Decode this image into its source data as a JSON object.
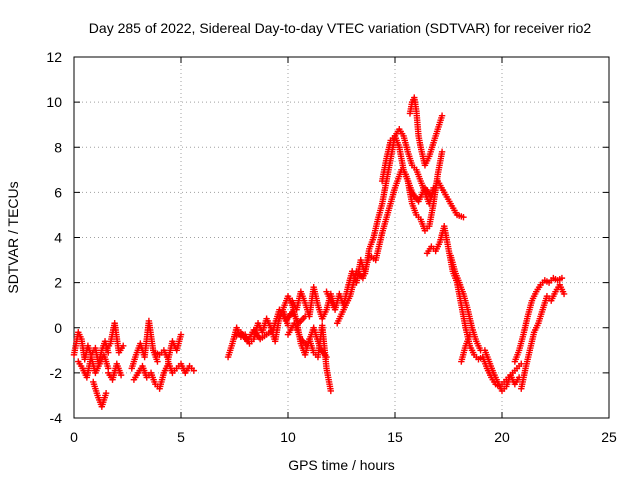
{
  "chart_data": {
    "type": "scatter",
    "title": "Day 285 of 2022, Sidereal Day-to-day VTEC variation (SDTVAR) for receiver rio2",
    "xlabel": "GPS time / hours",
    "ylabel": "SDTVAR / TECUs",
    "xlim": [
      0,
      25
    ],
    "ylim": [
      -4,
      12
    ],
    "xticks": [
      0,
      5,
      10,
      15,
      20,
      25
    ],
    "yticks": [
      -4,
      -2,
      0,
      2,
      4,
      6,
      8,
      10,
      12
    ],
    "grid": true,
    "marker": "+",
    "series": [
      {
        "name": "SDTVAR",
        "color": "#ff0000",
        "traces": [
          {
            "x": [
              0.0,
              0.2,
              0.35,
              0.5,
              0.65,
              0.8,
              1.0,
              1.15,
              1.3,
              1.45,
              1.6
            ],
            "y": [
              -1.2,
              -0.2,
              -0.5,
              -1.4,
              -0.8,
              -1.2,
              -0.9,
              -1.6,
              -1.0,
              -0.6,
              -1.1
            ]
          },
          {
            "x": [
              0.2,
              0.4,
              0.6,
              0.8,
              1.0,
              1.2,
              1.4,
              1.6
            ],
            "y": [
              -1.5,
              -1.8,
              -2.2,
              -1.3,
              -2.0,
              -1.6,
              -1.2,
              -1.8
            ]
          },
          {
            "x": [
              0.9,
              1.1,
              1.3,
              1.5
            ],
            "y": [
              -2.4,
              -3.0,
              -3.5,
              -2.9
            ]
          },
          {
            "x": [
              1.5,
              1.7,
              1.9,
              2.1,
              2.3
            ],
            "y": [
              -1.0,
              -0.7,
              0.2,
              -1.1,
              -0.8
            ]
          },
          {
            "x": [
              1.6,
              1.8,
              2.0,
              2.2
            ],
            "y": [
              -2.0,
              -2.3,
              -1.6,
              -2.1
            ]
          },
          {
            "x": [
              2.7,
              2.9,
              3.1,
              3.3,
              3.5,
              3.7,
              3.9
            ],
            "y": [
              -1.8,
              -1.2,
              -0.7,
              -1.3,
              0.3,
              -1.0,
              -1.5
            ]
          },
          {
            "x": [
              2.8,
              3.0,
              3.2,
              3.4,
              3.6,
              3.8,
              4.0,
              4.2,
              4.4
            ],
            "y": [
              -2.3,
              -2.0,
              -1.7,
              -2.2,
              -2.0,
              -2.5,
              -2.7,
              -2.0,
              -1.6
            ]
          },
          {
            "x": [
              3.8,
              4.0,
              4.2,
              4.4,
              4.6,
              4.8,
              5.0
            ],
            "y": [
              -1.1,
              -1.2,
              -1.0,
              -1.4,
              -0.6,
              -1.0,
              -0.3
            ]
          },
          {
            "x": [
              4.4,
              4.6,
              4.8,
              5.0,
              5.2,
              5.4,
              5.6
            ],
            "y": [
              -1.5,
              -2.0,
              -1.8,
              -1.6,
              -2.0,
              -1.7,
              -1.9
            ]
          },
          {
            "x": [
              7.2,
              7.4,
              7.6,
              7.8,
              8.0,
              8.2,
              8.4,
              8.6,
              8.8,
              9.0,
              9.2,
              9.4,
              9.6,
              9.8,
              10.0
            ],
            "y": [
              -1.3,
              -0.7,
              0.0,
              -0.4,
              -0.3,
              -0.7,
              -0.5,
              0.2,
              -0.2,
              0.4,
              0.0,
              -0.6,
              0.5,
              0.7,
              0.1
            ]
          },
          {
            "x": [
              7.5,
              7.8,
              8.1,
              8.4,
              8.7,
              9.0,
              9.3,
              9.6,
              9.9,
              10.2,
              10.5,
              10.8
            ],
            "y": [
              -0.4,
              -0.2,
              -0.6,
              -0.1,
              -0.5,
              -0.3,
              -0.1,
              0.8,
              0.3,
              0.7,
              0.2,
              0.5
            ]
          },
          {
            "x": [
              9.6,
              9.8,
              10.0,
              10.2,
              10.4,
              10.6,
              10.8,
              11.0,
              11.2,
              11.4,
              11.6,
              11.8,
              12.0
            ],
            "y": [
              0.4,
              0.9,
              1.4,
              1.0,
              0.3,
              -0.7,
              -1.2,
              -0.5,
              -1.1,
              -1.3,
              0.1,
              -1.8,
              -2.8
            ]
          },
          {
            "x": [
              10.2,
              10.4,
              10.6,
              10.8,
              11.0,
              11.2,
              11.4,
              11.6,
              11.8,
              12.0,
              12.2
            ],
            "y": [
              1.2,
              0.8,
              1.6,
              1.1,
              0.5,
              1.8,
              1.0,
              0.4,
              0.8,
              1.5,
              0.9
            ]
          },
          {
            "x": [
              10.0,
              10.3,
              10.6,
              10.9,
              11.2,
              11.5,
              11.8
            ],
            "y": [
              -0.3,
              0.2,
              -0.5,
              -0.8,
              0.0,
              -0.9,
              -1.3
            ]
          },
          {
            "x": [
              11.8,
              12.0,
              12.2,
              12.4,
              12.6,
              12.8,
              13.0,
              13.2,
              13.4,
              13.6,
              13.8,
              14.0,
              14.2,
              14.4,
              14.6,
              14.8,
              15.0,
              15.2,
              15.4,
              15.6,
              15.8,
              16.0,
              16.2,
              16.4,
              16.6,
              16.8
            ],
            "y": [
              1.6,
              1.2,
              0.8,
              1.5,
              1.0,
              1.8,
              2.5,
              2.0,
              3.0,
              2.4,
              3.5,
              4.0,
              4.8,
              5.5,
              6.5,
              7.5,
              8.5,
              8.8,
              8.5,
              7.8,
              7.2,
              7.0,
              6.5,
              6.0,
              5.5,
              6.2
            ]
          },
          {
            "x": [
              12.3,
              12.6,
              12.9,
              13.2,
              13.5,
              13.8,
              14.1,
              14.4,
              14.7,
              15.0,
              15.3
            ],
            "y": [
              0.2,
              0.8,
              1.4,
              2.5,
              2.2,
              3.2,
              3.0,
              4.2,
              5.2,
              6.2,
              7.0
            ]
          },
          {
            "x": [
              14.4,
              14.6,
              14.8,
              15.0,
              15.2,
              15.4,
              15.6,
              15.8,
              16.0,
              16.2,
              16.4,
              16.6,
              16.8,
              17.0,
              17.2
            ],
            "y": [
              6.5,
              7.5,
              8.3,
              8.5,
              8.0,
              7.0,
              6.5,
              5.5,
              5.0,
              4.8,
              4.3,
              4.5,
              5.5,
              6.8,
              7.8
            ]
          },
          {
            "x": [
              15.7,
              15.8,
              15.9,
              16.0,
              16.1,
              16.2,
              16.4,
              16.6,
              16.8,
              17.0,
              17.2
            ],
            "y": [
              9.5,
              10.0,
              10.2,
              9.6,
              8.5,
              8.0,
              7.2,
              7.6,
              8.2,
              8.8,
              9.4
            ]
          },
          {
            "x": [
              15.5,
              15.8,
              16.1,
              16.4,
              16.7,
              17.0,
              17.3,
              17.6,
              17.9,
              18.2
            ],
            "y": [
              6.8,
              6.0,
              5.6,
              6.2,
              5.8,
              6.5,
              6.0,
              5.5,
              5.0,
              4.9
            ]
          },
          {
            "x": [
              16.5,
              16.7,
              16.9,
              17.1,
              17.3,
              17.5,
              17.7,
              17.9,
              18.1,
              18.3,
              18.5,
              18.7,
              18.9,
              19.1,
              19.3,
              19.5,
              19.7,
              19.9,
              20.1,
              20.3,
              20.5,
              20.7,
              20.9
            ],
            "y": [
              3.3,
              3.6,
              3.4,
              3.8,
              4.5,
              3.5,
              2.5,
              2.0,
              1.0,
              0.0,
              -0.8,
              -1.2,
              -1.4,
              -1.3,
              -1.8,
              -2.2,
              -2.5,
              -2.6,
              -2.4,
              -2.2,
              -2.0,
              -1.8,
              -1.6
            ]
          },
          {
            "x": [
              17.6,
              17.8,
              18.0,
              18.2,
              18.4,
              18.6,
              18.8,
              19.0,
              19.2,
              19.4,
              19.6,
              19.8,
              20.0,
              20.2,
              20.4,
              20.6,
              20.8
            ],
            "y": [
              3.2,
              2.5,
              2.0,
              1.5,
              0.8,
              0.0,
              -0.6,
              -1.0,
              -1.0,
              -1.5,
              -2.0,
              -2.4,
              -2.8,
              -2.6,
              -2.1,
              -2.5,
              -2.2
            ]
          },
          {
            "x": [
              18.1,
              18.3,
              18.5
            ],
            "y": [
              -1.5,
              -0.8,
              -0.3
            ]
          },
          {
            "x": [
              20.6,
              20.8,
              21.0,
              21.2,
              21.4,
              21.6,
              21.8,
              22.0,
              22.2,
              22.4,
              22.6,
              22.8
            ],
            "y": [
              -1.5,
              -1.0,
              -0.3,
              0.5,
              1.2,
              1.6,
              1.9,
              2.1,
              2.0,
              2.2,
              2.1,
              2.2
            ]
          },
          {
            "x": [
              20.9,
              21.1,
              21.3,
              21.5,
              21.7,
              21.9,
              22.1,
              22.3,
              22.5,
              22.7,
              22.9
            ],
            "y": [
              -2.7,
              -1.8,
              -1.0,
              -0.2,
              0.2,
              0.8,
              1.4,
              1.2,
              1.6,
              1.9,
              1.5
            ]
          }
        ]
      }
    ]
  }
}
